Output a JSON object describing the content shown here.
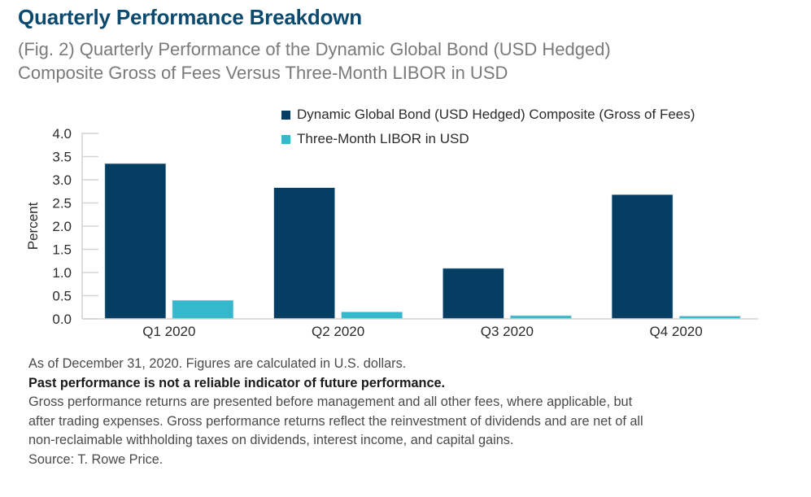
{
  "header": {
    "title": "Quarterly Performance Breakdown",
    "subtitle_lines": [
      "(Fig. 2) Quarterly Performance of the Dynamic Global Bond (USD Hedged)",
      "Composite Gross of Fees Versus Three-Month LIBOR in USD"
    ]
  },
  "colors": {
    "title": "#0b4a6f",
    "series_primary": "#043f63",
    "series_secondary": "#33b9cb",
    "axis": "#d3d3d3"
  },
  "chart_data": {
    "type": "bar",
    "title": "Quarterly Performance Breakdown",
    "subtitle": "(Fig. 2) Quarterly Performance of the Dynamic Global Bond (USD Hedged) Composite Gross of Fees Versus Three-Month LIBOR in USD",
    "xlabel": "",
    "ylabel": "Percent",
    "ylim": [
      0,
      4.0
    ],
    "yticks": [
      0.0,
      0.5,
      1.0,
      1.5,
      2.0,
      2.5,
      3.0,
      3.5,
      4.0
    ],
    "ytick_labels": [
      "0.0",
      "0.5",
      "1.0",
      "1.5",
      "2.0",
      "2.5",
      "3.0",
      "3.5",
      "4.0"
    ],
    "grid": false,
    "legend_position": "top-right",
    "categories": [
      "Q1 2020",
      "Q2 2020",
      "Q3 2020",
      "Q4 2020"
    ],
    "series": [
      {
        "name": "Dynamic Global Bond (USD Hedged) Composite (Gross of Fees)",
        "color": "#043f63",
        "values": [
          3.35,
          2.83,
          1.09,
          2.68
        ]
      },
      {
        "name": "Three-Month LIBOR in USD",
        "color": "#33b9cb",
        "values": [
          0.4,
          0.15,
          0.07,
          0.06
        ]
      }
    ]
  },
  "notes": {
    "as_of": "As of December 31, 2020. Figures are calculated in U.S. dollars.",
    "disclaimer": "Past performance is not a reliable indicator of future performance.",
    "gross_lines": [
      "Gross performance returns are presented before management and all other fees, where applicable, but",
      "after trading expenses. Gross performance returns reflect the reinvestment of dividends and are net of all",
      "non-reclaimable withholding taxes on dividends, interest income, and capital gains."
    ],
    "source": "Source: T. Rowe Price."
  }
}
